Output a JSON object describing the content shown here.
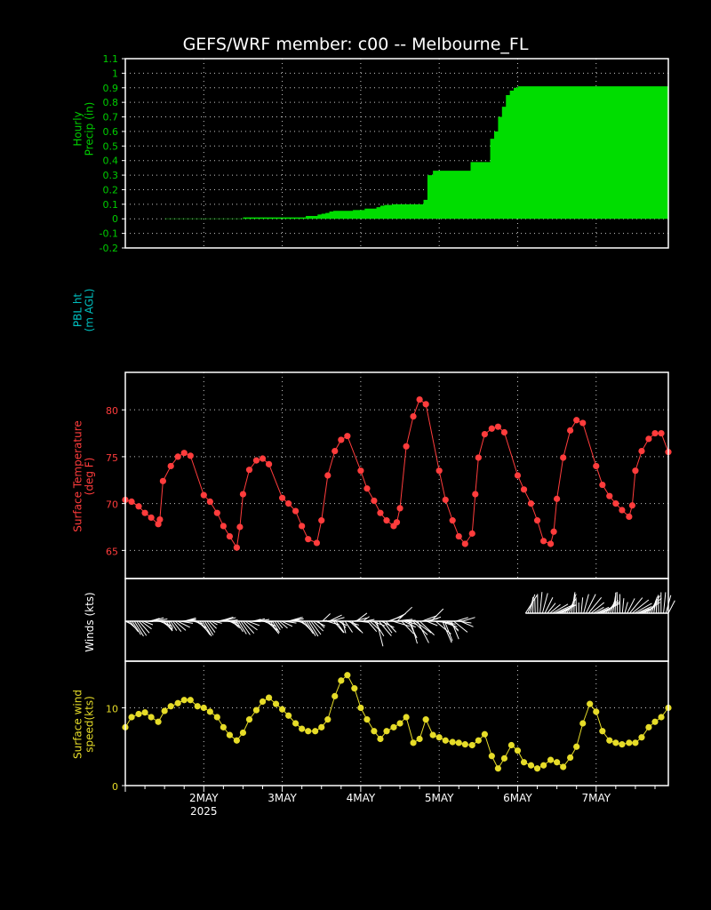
{
  "title": "GEFS/WRF member: c00 -- Melbourne_FL",
  "colors": {
    "background": "#000000",
    "frame": "#ffffff",
    "grid": "#c8c8c8",
    "precip": "#00dd00",
    "precip_text": "#00cc00",
    "pbl_text": "#00bfbf",
    "temp": "#ff3c3c",
    "wind_barbs": "#ffffff",
    "speed": "#e6dc28"
  },
  "x_axis": {
    "labels": [
      "2MAY",
      "3MAY",
      "4MAY",
      "5MAY",
      "6MAY",
      "7MAY"
    ],
    "year_label": "2025",
    "range_days": [
      1.0,
      7.92
    ]
  },
  "chart_data": [
    {
      "type": "area",
      "ylabel": "Hourly\nPrecip (in)",
      "ylim": [
        -0.2,
        1.1
      ],
      "grid": true,
      "yticks": [
        "1.1",
        "1",
        "0.9",
        "0.8",
        "0.7",
        "0.6",
        "0.5",
        "0.4",
        "0.3",
        "0.2",
        "0.1",
        "0",
        "-0.1",
        "-0.2"
      ],
      "x_day": [
        1.0,
        1.5,
        2.5,
        3.3,
        3.45,
        3.5,
        3.55,
        3.6,
        3.65,
        3.75,
        3.9,
        4.05,
        4.2,
        4.25,
        4.3,
        4.4,
        4.5,
        4.8,
        4.85,
        4.92,
        5.0,
        5.4,
        5.65,
        5.7,
        5.75,
        5.8,
        5.85,
        5.9,
        5.95,
        6.0,
        6.05,
        7.92
      ],
      "y": [
        0.0,
        0.002,
        0.01,
        0.02,
        0.03,
        0.035,
        0.04,
        0.05,
        0.055,
        0.055,
        0.06,
        0.07,
        0.08,
        0.09,
        0.095,
        0.1,
        0.1,
        0.13,
        0.3,
        0.33,
        0.33,
        0.39,
        0.55,
        0.6,
        0.7,
        0.77,
        0.85,
        0.88,
        0.9,
        0.91,
        0.91,
        0.91
      ]
    },
    {
      "type": "line",
      "ylabel": "PBL ht\n(m AGL)",
      "note_empty": true
    },
    {
      "type": "line",
      "ylabel": "Surface Temperature\n(deg F)",
      "ylim": [
        62,
        84
      ],
      "grid": true,
      "yticks": [
        "80",
        "75",
        "70",
        "65"
      ],
      "marker": "circle",
      "x_day": [
        1.0,
        1.08,
        1.17,
        1.25,
        1.33,
        1.42,
        1.44,
        1.48,
        1.58,
        1.67,
        1.75,
        1.83,
        2.0,
        2.08,
        2.17,
        2.25,
        2.33,
        2.42,
        2.46,
        2.5,
        2.58,
        2.67,
        2.75,
        2.83,
        3.0,
        3.08,
        3.17,
        3.25,
        3.33,
        3.44,
        3.5,
        3.58,
        3.67,
        3.75,
        3.83,
        4.0,
        4.08,
        4.17,
        4.25,
        4.33,
        4.42,
        4.46,
        4.5,
        4.58,
        4.67,
        4.75,
        4.83,
        5.0,
        5.08,
        5.17,
        5.25,
        5.33,
        5.42,
        5.46,
        5.5,
        5.58,
        5.67,
        5.75,
        5.83,
        6.0,
        6.08,
        6.17,
        6.25,
        6.33,
        6.42,
        6.46,
        6.5,
        6.58,
        6.67,
        6.75,
        6.83,
        7.0,
        7.08,
        7.17,
        7.25,
        7.33,
        7.42,
        7.46,
        7.5,
        7.58,
        7.67,
        7.75,
        7.83,
        7.92
      ],
      "y": [
        70.4,
        70.2,
        69.7,
        69.0,
        68.5,
        67.8,
        68.3,
        72.4,
        74.0,
        75.0,
        75.4,
        75.1,
        70.9,
        70.2,
        69.0,
        67.6,
        66.5,
        65.3,
        67.5,
        71.0,
        73.6,
        74.6,
        74.8,
        74.2,
        70.6,
        70.0,
        69.2,
        67.6,
        66.2,
        65.8,
        68.2,
        73.0,
        75.6,
        76.8,
        77.2,
        73.5,
        71.6,
        70.3,
        69.0,
        68.2,
        67.6,
        68.0,
        69.5,
        76.1,
        79.3,
        81.1,
        80.6,
        73.5,
        70.4,
        68.2,
        66.5,
        65.7,
        66.8,
        71.0,
        74.9,
        77.4,
        78.0,
        78.2,
        77.6,
        73.0,
        71.5,
        70.0,
        68.2,
        66.0,
        65.7,
        67.0,
        70.5,
        74.9,
        77.8,
        78.9,
        78.6,
        74.0,
        72.0,
        70.8,
        70.0,
        69.3,
        68.6,
        69.8,
        73.5,
        75.6,
        76.9,
        77.5,
        77.5,
        75.5
      ]
    },
    {
      "type": "barbs",
      "ylabel": "Winds (kts)",
      "rows": 2
    },
    {
      "type": "line",
      "ylabel": "Surface wind\nspeed(kts)",
      "ylim": [
        0,
        16
      ],
      "grid": true,
      "yticks": [
        "10",
        "0"
      ],
      "marker": "circle",
      "x_day": [
        1.0,
        1.08,
        1.17,
        1.25,
        1.33,
        1.42,
        1.5,
        1.58,
        1.67,
        1.75,
        1.83,
        1.92,
        2.0,
        2.08,
        2.17,
        2.25,
        2.33,
        2.42,
        2.5,
        2.58,
        2.67,
        2.75,
        2.83,
        2.92,
        3.0,
        3.08,
        3.17,
        3.25,
        3.33,
        3.42,
        3.5,
        3.58,
        3.67,
        3.75,
        3.83,
        3.92,
        4.0,
        4.08,
        4.17,
        4.25,
        4.33,
        4.42,
        4.5,
        4.58,
        4.67,
        4.75,
        4.83,
        4.92,
        5.0,
        5.08,
        5.17,
        5.25,
        5.33,
        5.42,
        5.5,
        5.58,
        5.67,
        5.75,
        5.83,
        5.92,
        6.0,
        6.08,
        6.17,
        6.25,
        6.33,
        6.42,
        6.5,
        6.58,
        6.67,
        6.75,
        6.83,
        6.92,
        7.0,
        7.08,
        7.17,
        7.25,
        7.33,
        7.42,
        7.5,
        7.58,
        7.67,
        7.75,
        7.83,
        7.92
      ],
      "y": [
        7.5,
        8.8,
        9.2,
        9.4,
        8.8,
        8.2,
        9.6,
        10.2,
        10.6,
        11.0,
        11.0,
        10.2,
        10.0,
        9.5,
        8.8,
        7.5,
        6.5,
        5.8,
        6.8,
        8.5,
        9.7,
        10.8,
        11.3,
        10.5,
        9.8,
        9.0,
        8.0,
        7.3,
        7.0,
        7.0,
        7.5,
        8.5,
        11.5,
        13.5,
        14.2,
        12.5,
        10.0,
        8.5,
        7.0,
        6.0,
        7.0,
        7.5,
        8.0,
        8.8,
        5.5,
        6.0,
        8.5,
        6.5,
        6.2,
        5.8,
        5.6,
        5.5,
        5.3,
        5.2,
        5.8,
        6.6,
        3.8,
        2.2,
        3.5,
        5.2,
        4.5,
        3.0,
        2.6,
        2.2,
        2.6,
        3.3,
        3.0,
        2.4,
        3.6,
        5.0,
        8.0,
        10.5,
        9.5,
        7.0,
        5.8,
        5.5,
        5.3,
        5.5,
        5.5,
        6.2,
        7.5,
        8.2,
        8.8,
        10.0
      ]
    }
  ]
}
